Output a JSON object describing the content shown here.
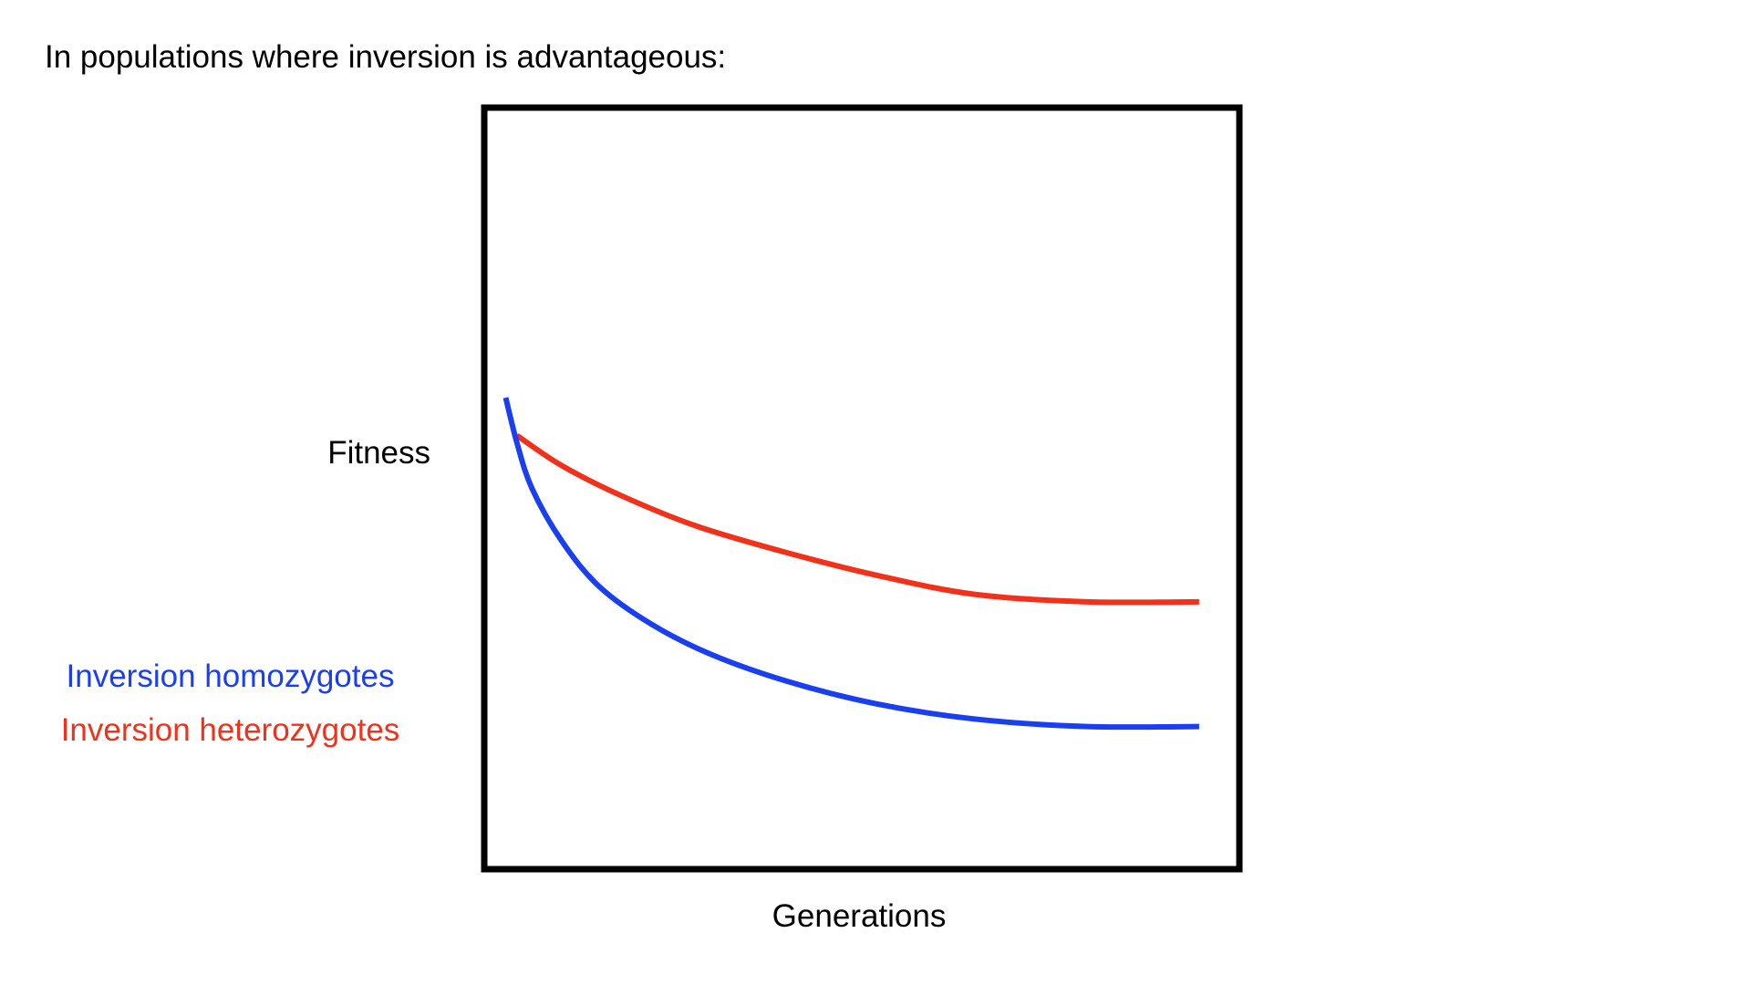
{
  "slide": {
    "title": "In populations where inversion is advantageous:"
  },
  "chart_data": {
    "type": "line",
    "title": "",
    "xlabel": "Generations",
    "ylabel": "Fitness",
    "xlim": [
      0,
      100
    ],
    "ylim": [
      0,
      100
    ],
    "grid": false,
    "legend_position": "left",
    "series": [
      {
        "name": "Inversion homozygotes",
        "color": "#1a3ff0",
        "x": [
          2.5,
          4,
          6,
          10,
          15,
          22,
          30,
          40,
          52,
          65,
          80,
          95
        ],
        "y": [
          62,
          56,
          50,
          43,
          37,
          32,
          28,
          24.5,
          21.5,
          19.5,
          18.5,
          18.5
        ]
      },
      {
        "name": "Inversion heterozygotes",
        "color": "#f2311a",
        "x": [
          4,
          10,
          18,
          28,
          40,
          52,
          65,
          80,
          95
        ],
        "y": [
          57,
          53,
          49,
          45,
          41.5,
          38.5,
          36,
          35,
          35
        ]
      }
    ]
  }
}
